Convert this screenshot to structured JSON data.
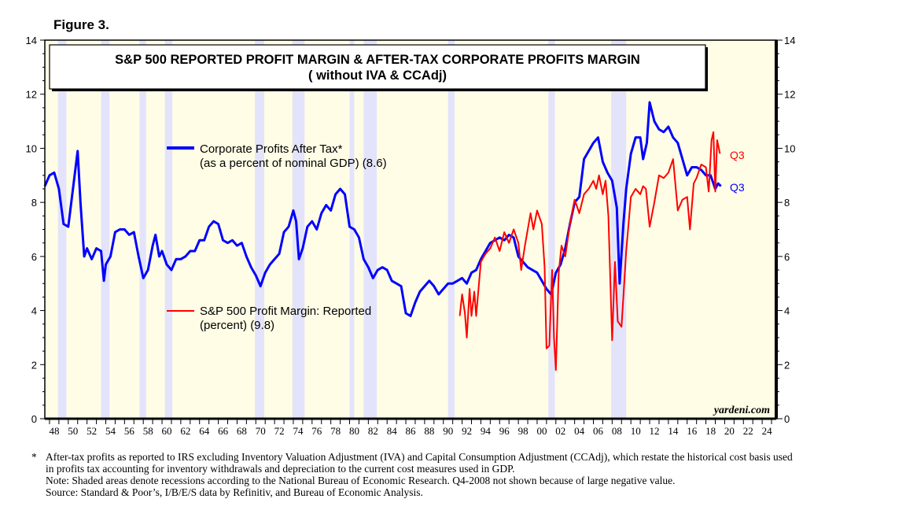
{
  "figure_label": "Figure 3.",
  "footnote_star": "*",
  "footnotes": [
    "After-tax profits as reported to IRS excluding Inventory Valuation Adjustment (IVA) and Capital Consumption Adjustment (CCAdj), which restate the historical cost basis used in profits tax accounting for inventory withdrawals and depreciation to the current cost measures used in GDP.",
    "Note: Shaded areas denote recessions according to the National Bureau of Economic Research. Q4-2008 not shown because of large negative value.",
    "Source: Standard & Poor’s, I/B/E/S data by Refinitiv, and Bureau of Economic Analysis."
  ],
  "chart_data": {
    "type": "line",
    "title": "S&P 500 REPORTED PROFIT MARGIN & AFTER-TAX CORPORATE PROFITS MARGIN",
    "subtitle": "( without IVA & CCAdj)",
    "watermark": "yardeni.com",
    "xlim": [
      1947.5,
      2025.5
    ],
    "ylim": [
      0,
      14
    ],
    "yticks": [
      0,
      2,
      4,
      6,
      8,
      10,
      12,
      14
    ],
    "xtick_labels": [
      "48",
      "50",
      "52",
      "54",
      "56",
      "58",
      "60",
      "62",
      "64",
      "66",
      "68",
      "70",
      "72",
      "74",
      "76",
      "78",
      "80",
      "82",
      "84",
      "86",
      "88",
      "90",
      "92",
      "94",
      "96",
      "98",
      "00",
      "02",
      "04",
      "06",
      "08",
      "10",
      "12",
      "14",
      "16",
      "18",
      "20",
      "22",
      "24"
    ],
    "recessions": [
      [
        1948.9,
        1949.8
      ],
      [
        1953.5,
        1954.4
      ],
      [
        1957.6,
        1958.3
      ],
      [
        1960.3,
        1961.1
      ],
      [
        1969.9,
        1970.9
      ],
      [
        1973.9,
        1975.2
      ],
      [
        1980.0,
        1980.5
      ],
      [
        1981.5,
        1982.9
      ],
      [
        1990.5,
        1991.2
      ],
      [
        2001.2,
        2001.9
      ],
      [
        2007.9,
        2009.5
      ]
    ],
    "colors": {
      "blue": "#0000ff",
      "red": "#ff0000",
      "plot_bg": "#fffde6",
      "recession": "#e3e3fb"
    },
    "series": [
      {
        "name": "Corporate Profits After Tax*",
        "legend_line2": "(as a percent of nominal GDP) (8.6)",
        "end_label": "Q3",
        "color": "#0000ff",
        "points": [
          [
            1947.5,
            8.6
          ],
          [
            1948,
            9.0
          ],
          [
            1948.5,
            9.1
          ],
          [
            1949,
            8.5
          ],
          [
            1949.5,
            7.2
          ],
          [
            1950,
            7.1
          ],
          [
            1950.5,
            8.5
          ],
          [
            1951,
            9.9
          ],
          [
            1951.3,
            8.0
          ],
          [
            1951.7,
            6.0
          ],
          [
            1952,
            6.3
          ],
          [
            1952.5,
            5.9
          ],
          [
            1953,
            6.3
          ],
          [
            1953.5,
            6.2
          ],
          [
            1953.8,
            5.1
          ],
          [
            1954,
            5.7
          ],
          [
            1954.5,
            6.0
          ],
          [
            1955,
            6.9
          ],
          [
            1955.5,
            7.0
          ],
          [
            1956,
            7.0
          ],
          [
            1956.5,
            6.8
          ],
          [
            1957,
            6.9
          ],
          [
            1957.5,
            6.0
          ],
          [
            1958,
            5.2
          ],
          [
            1958.5,
            5.5
          ],
          [
            1959,
            6.4
          ],
          [
            1959.3,
            6.8
          ],
          [
            1959.7,
            6.0
          ],
          [
            1960,
            6.2
          ],
          [
            1960.5,
            5.7
          ],
          [
            1961,
            5.5
          ],
          [
            1961.5,
            5.9
          ],
          [
            1962,
            5.9
          ],
          [
            1962.5,
            6.0
          ],
          [
            1963,
            6.2
          ],
          [
            1963.5,
            6.2
          ],
          [
            1964,
            6.6
          ],
          [
            1964.5,
            6.6
          ],
          [
            1965,
            7.1
          ],
          [
            1965.5,
            7.3
          ],
          [
            1966,
            7.2
          ],
          [
            1966.5,
            6.6
          ],
          [
            1967,
            6.5
          ],
          [
            1967.5,
            6.6
          ],
          [
            1968,
            6.4
          ],
          [
            1968.5,
            6.5
          ],
          [
            1969,
            6.0
          ],
          [
            1969.5,
            5.6
          ],
          [
            1970,
            5.3
          ],
          [
            1970.5,
            4.9
          ],
          [
            1971,
            5.4
          ],
          [
            1971.5,
            5.7
          ],
          [
            1972,
            5.9
          ],
          [
            1972.5,
            6.1
          ],
          [
            1973,
            6.9
          ],
          [
            1973.5,
            7.1
          ],
          [
            1974,
            7.7
          ],
          [
            1974.3,
            7.3
          ],
          [
            1974.6,
            5.9
          ],
          [
            1975,
            6.3
          ],
          [
            1975.5,
            7.1
          ],
          [
            1976,
            7.3
          ],
          [
            1976.5,
            7.0
          ],
          [
            1977,
            7.6
          ],
          [
            1977.5,
            7.9
          ],
          [
            1978,
            7.7
          ],
          [
            1978.5,
            8.3
          ],
          [
            1979,
            8.5
          ],
          [
            1979.5,
            8.3
          ],
          [
            1980,
            7.1
          ],
          [
            1980.5,
            7.0
          ],
          [
            1981,
            6.7
          ],
          [
            1981.5,
            5.9
          ],
          [
            1982,
            5.6
          ],
          [
            1982.5,
            5.2
          ],
          [
            1983,
            5.5
          ],
          [
            1983.5,
            5.6
          ],
          [
            1984,
            5.5
          ],
          [
            1984.5,
            5.1
          ],
          [
            1985,
            5.0
          ],
          [
            1985.5,
            4.9
          ],
          [
            1986,
            3.9
          ],
          [
            1986.5,
            3.8
          ],
          [
            1987,
            4.3
          ],
          [
            1987.5,
            4.7
          ],
          [
            1988,
            4.9
          ],
          [
            1988.5,
            5.1
          ],
          [
            1989,
            4.9
          ],
          [
            1989.5,
            4.6
          ],
          [
            1990,
            4.8
          ],
          [
            1990.5,
            5.0
          ],
          [
            1991,
            5.0
          ],
          [
            1991.5,
            5.1
          ],
          [
            1992,
            5.2
          ],
          [
            1992.5,
            5.0
          ],
          [
            1993,
            5.4
          ],
          [
            1993.5,
            5.5
          ],
          [
            1994,
            5.9
          ],
          [
            1994.5,
            6.2
          ],
          [
            1995,
            6.5
          ],
          [
            1995.5,
            6.6
          ],
          [
            1996,
            6.7
          ],
          [
            1996.5,
            6.6
          ],
          [
            1997,
            6.8
          ],
          [
            1997.5,
            6.7
          ],
          [
            1998,
            6.0
          ],
          [
            1998.5,
            5.8
          ],
          [
            1999,
            5.6
          ],
          [
            1999.5,
            5.5
          ],
          [
            2000,
            5.4
          ],
          [
            2000.5,
            5.1
          ],
          [
            2001,
            4.8
          ],
          [
            2001.5,
            4.6
          ],
          [
            2002,
            5.4
          ],
          [
            2002.5,
            5.7
          ],
          [
            2003,
            6.3
          ],
          [
            2003.5,
            7.2
          ],
          [
            2004,
            8.0
          ],
          [
            2004.5,
            8.2
          ],
          [
            2005,
            9.6
          ],
          [
            2005.5,
            9.9
          ],
          [
            2006,
            10.2
          ],
          [
            2006.5,
            10.4
          ],
          [
            2007,
            9.5
          ],
          [
            2007.5,
            9.1
          ],
          [
            2008,
            8.8
          ],
          [
            2008.5,
            7.8
          ],
          [
            2008.8,
            5.0
          ],
          [
            2009.2,
            7.2
          ],
          [
            2009.5,
            8.5
          ],
          [
            2010,
            9.8
          ],
          [
            2010.5,
            10.4
          ],
          [
            2011,
            10.4
          ],
          [
            2011.3,
            9.6
          ],
          [
            2011.7,
            10.2
          ],
          [
            2012,
            11.7
          ],
          [
            2012.5,
            11.0
          ],
          [
            2013,
            10.7
          ],
          [
            2013.5,
            10.6
          ],
          [
            2014,
            10.8
          ],
          [
            2014.5,
            10.4
          ],
          [
            2015,
            10.2
          ],
          [
            2015.5,
            9.6
          ],
          [
            2016,
            9.0
          ],
          [
            2016.5,
            9.3
          ],
          [
            2017,
            9.3
          ],
          [
            2017.5,
            9.2
          ],
          [
            2018,
            9.0
          ],
          [
            2018.5,
            9.0
          ],
          [
            2019,
            8.5
          ],
          [
            2019.3,
            8.7
          ],
          [
            2019.6,
            8.6
          ]
        ]
      },
      {
        "name": "S&P 500 Profit Margin: Reported",
        "legend_line2": "(percent) (9.8)",
        "end_label": "Q3",
        "color": "#ff0000",
        "points": [
          [
            1991.75,
            3.8
          ],
          [
            1992,
            4.6
          ],
          [
            1992.3,
            3.9
          ],
          [
            1992.5,
            3.0
          ],
          [
            1992.8,
            4.8
          ],
          [
            1993,
            3.8
          ],
          [
            1993.3,
            4.7
          ],
          [
            1993.5,
            3.8
          ],
          [
            1993.8,
            5.0
          ],
          [
            1994,
            5.8
          ],
          [
            1994.5,
            6.1
          ],
          [
            1995,
            6.3
          ],
          [
            1995.5,
            6.7
          ],
          [
            1996,
            6.2
          ],
          [
            1996.5,
            6.9
          ],
          [
            1997,
            6.5
          ],
          [
            1997.5,
            7.0
          ],
          [
            1998,
            6.5
          ],
          [
            1998.3,
            5.5
          ],
          [
            1998.7,
            6.4
          ],
          [
            1999,
            7.0
          ],
          [
            1999.3,
            7.6
          ],
          [
            1999.6,
            7.0
          ],
          [
            2000,
            7.7
          ],
          [
            2000.5,
            7.2
          ],
          [
            2000.8,
            5.6
          ],
          [
            2001,
            2.6
          ],
          [
            2001.3,
            2.7
          ],
          [
            2001.6,
            5.5
          ],
          [
            2001.8,
            3.0
          ],
          [
            2002,
            1.8
          ],
          [
            2002.3,
            5.4
          ],
          [
            2002.6,
            6.4
          ],
          [
            2003,
            6.0
          ],
          [
            2003.5,
            7.2
          ],
          [
            2004,
            8.1
          ],
          [
            2004.5,
            7.6
          ],
          [
            2005,
            8.3
          ],
          [
            2005.5,
            8.5
          ],
          [
            2006,
            8.8
          ],
          [
            2006.3,
            8.5
          ],
          [
            2006.6,
            9.0
          ],
          [
            2007,
            8.3
          ],
          [
            2007.3,
            8.8
          ],
          [
            2007.6,
            7.5
          ],
          [
            2008,
            2.9
          ],
          [
            2008.3,
            5.8
          ],
          [
            2008.6,
            3.6
          ],
          [
            2009,
            3.4
          ],
          [
            2009.5,
            6.2
          ],
          [
            2010,
            8.2
          ],
          [
            2010.5,
            8.5
          ],
          [
            2011,
            8.3
          ],
          [
            2011.3,
            8.6
          ],
          [
            2011.6,
            8.5
          ],
          [
            2012,
            7.1
          ],
          [
            2012.5,
            8.0
          ],
          [
            2013,
            9.0
          ],
          [
            2013.5,
            8.9
          ],
          [
            2014,
            9.1
          ],
          [
            2014.5,
            9.6
          ],
          [
            2015,
            7.7
          ],
          [
            2015.5,
            8.1
          ],
          [
            2016,
            8.2
          ],
          [
            2016.3,
            7.0
          ],
          [
            2016.7,
            8.7
          ],
          [
            2017,
            8.9
          ],
          [
            2017.5,
            9.4
          ],
          [
            2018,
            9.3
          ],
          [
            2018.3,
            8.4
          ],
          [
            2018.6,
            10.3
          ],
          [
            2018.8,
            10.6
          ],
          [
            2019,
            8.4
          ],
          [
            2019.2,
            10.3
          ],
          [
            2019.5,
            9.8
          ]
        ]
      }
    ]
  }
}
